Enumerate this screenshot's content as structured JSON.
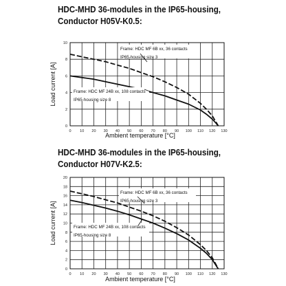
{
  "charts": [
    {
      "title_line1": "HDC-MHD 36-modules in the IP65-housing,",
      "title_line2": "Conductor H05V-K0.5:",
      "xlabel": "Ambient temperature [°C]",
      "ylabel": "Load current [A]",
      "x_ticks": [
        "0",
        "10",
        "20",
        "30",
        "40",
        "50",
        "60",
        "70",
        "80",
        "90",
        "100",
        "110",
        "120",
        "130"
      ],
      "y_ticks": [
        "0",
        "2",
        "4",
        "6",
        "8",
        "10"
      ],
      "annotations": [
        {
          "line1": "Frame: HDC MF 6B xx, 36 contacts",
          "line2": "IP65-housing size 3"
        },
        {
          "line1": "Frame: HDC MF 24B xx, 108 contacts",
          "line2": "IP65-housing size 8"
        }
      ]
    },
    {
      "title_line1": "HDC-MHD 36-modules in the IP65-housing,",
      "title_line2": "Conductor H07V-K2.5:",
      "xlabel": "Ambient temperature [°C]",
      "ylabel": "Load current [A]",
      "x_ticks": [
        "0",
        "10",
        "20",
        "30",
        "40",
        "50",
        "60",
        "70",
        "80",
        "90",
        "100",
        "110",
        "120",
        "130"
      ],
      "y_ticks": [
        "0",
        "2",
        "4",
        "6",
        "8",
        "10",
        "12",
        "14",
        "16",
        "18",
        "20"
      ],
      "annotations": [
        {
          "line1": "Frame: HDC MF 6B xx, 36 contacts",
          "line2": "IP65-housing size 3"
        },
        {
          "line1": "Frame: HDC MF 24B xx, 108 contacts",
          "line2": "IP65-housing size 8"
        }
      ]
    }
  ],
  "chart_data": [
    {
      "type": "line",
      "title": "HDC-MHD 36-modules in the IP65-housing, Conductor H05V-K0.5:",
      "xlabel": "Ambient temperature [°C]",
      "ylabel": "Load current [A]",
      "xlim": [
        0,
        130
      ],
      "ylim": [
        0,
        10
      ],
      "grid": true,
      "series": [
        {
          "x": [
            0,
            10,
            20,
            30,
            40,
            50,
            60,
            70,
            80,
            90,
            100,
            110,
            115,
            120,
            123,
            125
          ],
          "values": [
            8.6,
            8.3,
            8.0,
            7.7,
            7.3,
            6.9,
            6.4,
            5.9,
            5.3,
            4.6,
            3.8,
            2.7,
            2.0,
            1.2,
            0.5,
            0
          ]
        },
        {
          "x": [
            0,
            10,
            20,
            30,
            40,
            50,
            60,
            70,
            80,
            90,
            100,
            110,
            115,
            120,
            123,
            125
          ],
          "values": [
            6.0,
            5.8,
            5.6,
            5.3,
            5.0,
            4.7,
            4.4,
            4.0,
            3.6,
            3.1,
            2.6,
            1.9,
            1.4,
            0.8,
            0.35,
            0
          ]
        }
      ]
    },
    {
      "type": "line",
      "title": "HDC-MHD 36-modules in the IP65-housing, Conductor H07V-K2.5:",
      "xlabel": "Ambient temperature [°C]",
      "ylabel": "Load current [A]",
      "xlim": [
        0,
        130
      ],
      "ylim": [
        0,
        20
      ],
      "grid": true,
      "series": [
        {
          "x": [
            0,
            10,
            20,
            30,
            40,
            50,
            60,
            70,
            80,
            90,
            100,
            110,
            115,
            120,
            123,
            125
          ],
          "values": [
            17.0,
            16.4,
            15.8,
            15.1,
            14.4,
            13.5,
            12.6,
            11.6,
            10.4,
            9.0,
            7.4,
            5.3,
            4.0,
            2.4,
            1.0,
            0
          ]
        },
        {
          "x": [
            0,
            10,
            20,
            30,
            40,
            50,
            60,
            70,
            80,
            90,
            100,
            110,
            115,
            120,
            123,
            125
          ],
          "values": [
            15.0,
            14.5,
            13.9,
            13.3,
            12.6,
            11.8,
            10.9,
            10.0,
            8.9,
            7.7,
            6.3,
            4.5,
            3.4,
            2.0,
            0.8,
            0
          ]
        }
      ]
    }
  ]
}
